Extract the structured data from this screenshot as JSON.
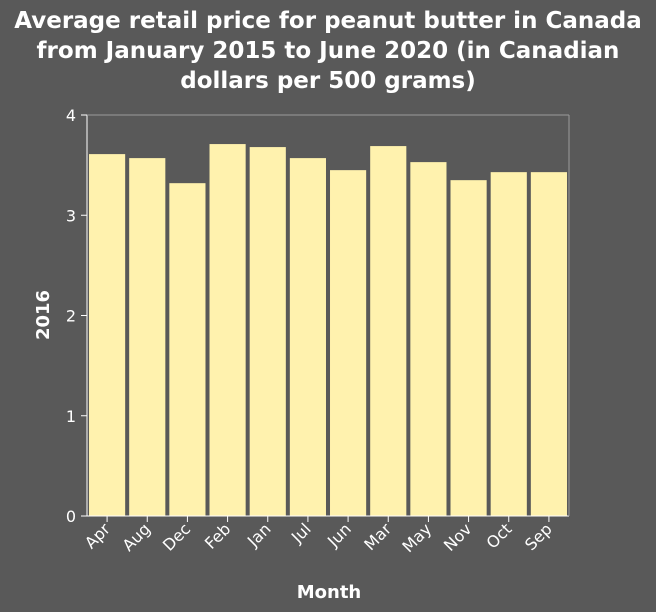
{
  "chart_data": {
    "type": "bar",
    "title": "Average retail price for peanut butter in Canada from January 2015 to June 2020 (in Canadian dollars per 500 grams)",
    "xlabel": "Month",
    "ylabel": "2016",
    "categories": [
      "Apr",
      "Aug",
      "Dec",
      "Feb",
      "Jan",
      "Jul",
      "Jun",
      "Mar",
      "May",
      "Nov",
      "Oct",
      "Sep"
    ],
    "values": [
      3.61,
      3.57,
      3.32,
      3.71,
      3.68,
      3.57,
      3.45,
      3.69,
      3.53,
      3.35,
      3.43,
      3.43
    ],
    "ylim": [
      0,
      4
    ],
    "yticks": [
      0,
      1,
      2,
      3,
      4
    ],
    "grid": false,
    "colors": {
      "background": "#595959",
      "bar": "#fff2ae",
      "axis": "#ffffff"
    }
  }
}
